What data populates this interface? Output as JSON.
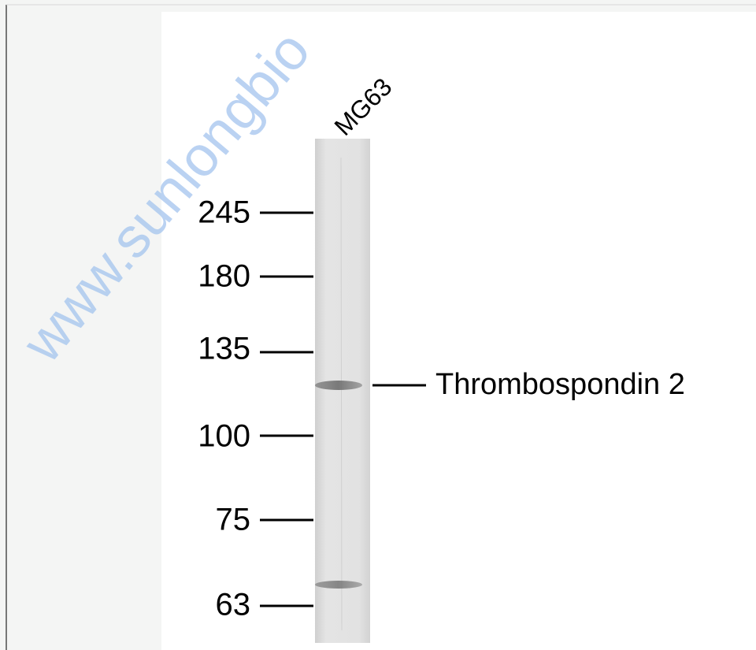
{
  "figure": {
    "lane_label": "MG63",
    "markers": [
      245,
      180,
      135,
      100,
      75,
      63
    ],
    "band_label": "Thrombospondin 2",
    "watermark": "www.sunlongbio"
  }
}
